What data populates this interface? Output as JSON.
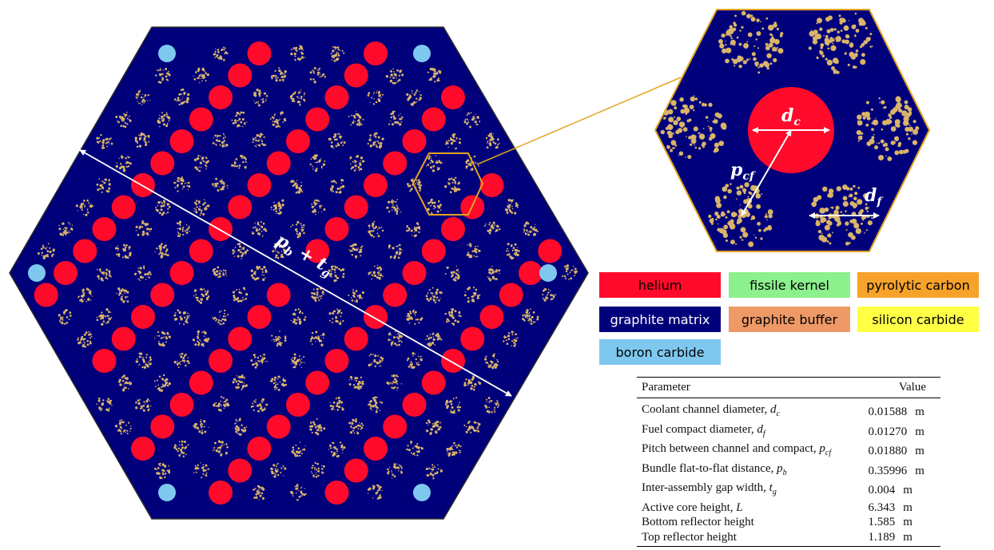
{
  "colors": {
    "helium": "#ff0a2a",
    "graphite_matrix": "#00007a",
    "fissile_kernel": "#8cf08c",
    "graphite_buffer": "#ee9966",
    "pyrolytic_carbon": "#f7a22a",
    "silicon_carbide": "#ffff44",
    "boron_carbide": "#7ec8f0",
    "particle": "#d9b46a",
    "outline": "#2b2b2b",
    "zoom_outline": "#e3a51f"
  },
  "labels": {
    "pb_tg": "p_b + t_g",
    "dc": "d_c",
    "pcf": "p_cf",
    "df": "d_f"
  },
  "legend": [
    {
      "label": "helium",
      "color": "#ff0a2a",
      "text_color": "#000000"
    },
    {
      "label": "fissile kernel",
      "color": "#8cf08c",
      "text_color": "#000000"
    },
    {
      "label": "pyrolytic carbon",
      "color": "#f7a22a",
      "text_color": "#000000"
    },
    {
      "label": "graphite matrix",
      "color": "#00007a",
      "text_color": "#ffffff"
    },
    {
      "label": "graphite buffer",
      "color": "#ee9966",
      "text_color": "#000000"
    },
    {
      "label": "silicon carbide",
      "color": "#ffff44",
      "text_color": "#000000"
    },
    {
      "label": "boron carbide",
      "color": "#7ec8f0",
      "text_color": "#000000"
    }
  ],
  "table": {
    "headers": [
      "Parameter",
      "Value"
    ],
    "rows": [
      {
        "param": "Coolant channel diameter, ",
        "sym": "d",
        "sub": "c",
        "value": "0.01588",
        "unit": "m"
      },
      {
        "param": "Fuel compact diameter, ",
        "sym": "d",
        "sub": "f",
        "value": "0.01270",
        "unit": "m"
      },
      {
        "param": "Pitch between channel and compact, ",
        "sym": "p",
        "sub": "cf",
        "value": "0.01880",
        "unit": "m"
      },
      {
        "param": "Bundle flat-to-flat distance, ",
        "sym": "p",
        "sub": "b",
        "value": "0.35996",
        "unit": "m"
      },
      {
        "param": "Inter-assembly gap width, ",
        "sym": "t",
        "sub": "g",
        "value": "0.004",
        "unit": "m"
      },
      {
        "param": "Active core height, ",
        "sym": "L",
        "sub": "",
        "value": "6.343",
        "unit": "m"
      },
      {
        "param": "Bottom reflector height",
        "sym": "",
        "sub": "",
        "value": "1.585",
        "unit": "m"
      },
      {
        "param": "Top reflector height",
        "sym": "",
        "sub": "",
        "value": "1.189",
        "unit": "m"
      }
    ]
  }
}
